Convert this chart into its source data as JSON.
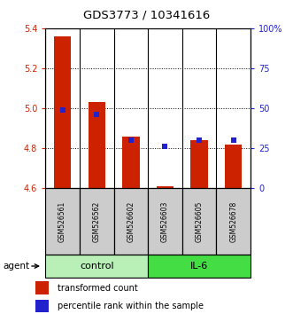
{
  "title": "GDS3773 / 10341616",
  "samples": [
    "GSM526561",
    "GSM526562",
    "GSM526602",
    "GSM526603",
    "GSM526605",
    "GSM526678"
  ],
  "red_values": [
    5.36,
    5.03,
    4.86,
    4.61,
    4.84,
    4.82
  ],
  "blue_percentiles": [
    49,
    46,
    30,
    26,
    30,
    30
  ],
  "ymin": 4.6,
  "ymax": 5.4,
  "yticks": [
    4.6,
    4.8,
    5.0,
    5.2,
    5.4
  ],
  "right_yticks": [
    0,
    25,
    50,
    75,
    100
  ],
  "right_yticklabels": [
    "0",
    "25",
    "50",
    "75",
    "100%"
  ],
  "groups": [
    {
      "label": "control",
      "indices": [
        0,
        1,
        2
      ],
      "color": "#b8f0b8"
    },
    {
      "label": "IL-6",
      "indices": [
        3,
        4,
        5
      ],
      "color": "#44dd44"
    }
  ],
  "bar_color": "#cc2200",
  "dot_color": "#2222cc",
  "bar_width": 0.5,
  "sample_bg": "#cccccc",
  "agent_label": "agent",
  "legend_red": "transformed count",
  "legend_blue": "percentile rank within the sample"
}
